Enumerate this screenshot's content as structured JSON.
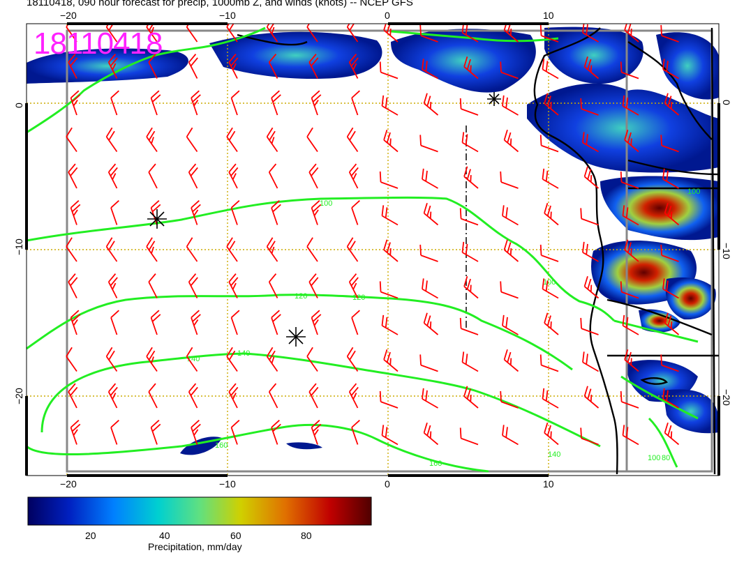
{
  "title": "18110418, 090 hour forecast for precip, 1000mb Z, and winds (knots) -- NCEP GFS",
  "stamp": "18110418",
  "axes": {
    "top_lon": [
      "−20",
      "−10",
      "0",
      "10"
    ],
    "bottom_lon": [
      "−20",
      "−10",
      "0",
      "10"
    ],
    "left_lat": [
      "0",
      "−10",
      "−20"
    ],
    "right_lat": [
      "0",
      "−10",
      "−20"
    ]
  },
  "contours": {
    "labels": [
      "100",
      "120",
      "120",
      "140",
      "140",
      "160",
      "160",
      "100",
      "140",
      "100",
      "100",
      "80"
    ]
  },
  "colorbar": {
    "ticks": [
      "20",
      "40",
      "60",
      "80"
    ],
    "label": "Precipitation, mm/day",
    "colors": [
      "#000080",
      "#0040ff",
      "#00c0c0",
      "#40e0a0",
      "#c0c000",
      "#e06000",
      "#c00000",
      "#600000"
    ]
  },
  "colors": {
    "wind_barbs": "#ff0000",
    "contours": "#22ee22",
    "grid": "#ccaa00",
    "stamp": "#ff22ff"
  }
}
